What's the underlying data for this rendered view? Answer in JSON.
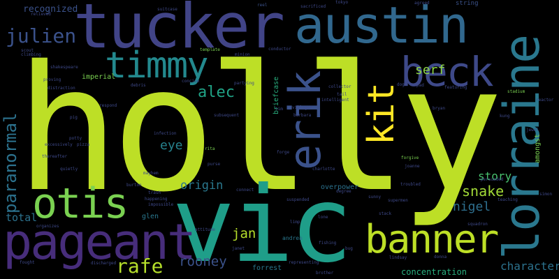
{
  "words": {
    "holly": "holly",
    "vic": "vic",
    "tucker": "tucker",
    "austin": "austin",
    "lorraine": "lorraine",
    "pageant": "pageant",
    "banner": "banner",
    "otis": "otis",
    "erik": "erik",
    "beck": "beck",
    "timmy": "timmy",
    "kit": "kit",
    "julien": "julien",
    "paranormal": "paranormal",
    "rafe": "rafe",
    "rooney": "rooney",
    "character": "character",
    "snake": "snake",
    "nigel": "nigel",
    "story": "story",
    "origin": "origin",
    "alec": "alec",
    "eye": "eye",
    "serf": "serf",
    "jan": "jan",
    "total": "total",
    "concentration": "concentration",
    "recognized": "recognized",
    "imperial": "imperial",
    "briefcase": "briefcase",
    "overpower": "overpower",
    "forrest": "forrest",
    "glen": "glen",
    "amongst": "amongst",
    "string": "string",
    "andrea": "andrea",
    "relieved": "relieved",
    "scout": "scout",
    "climbing": "climbing",
    "reel": "reel",
    "sacrificed": "sacrificed",
    "agreed": "agreed",
    "suitcase": "suitcase",
    "conductor": "conductor",
    "template": "template",
    "minion": "minion",
    "partying": "partying",
    "collector": "collector",
    "intelligent": "intelligent",
    "villager": "villager",
    "barbara": "barbara",
    "tokyo": "tokyo",
    "forge": "forge",
    "charlotte": "charlotte",
    "supermen": "supermen",
    "troubled": "troubled",
    "forgive": "forgive",
    "persuaded": "persuaded",
    "joanne": "joanne",
    "teaching": "teaching",
    "simon": "simon",
    "squadron": "squadron",
    "fishing": "fishing",
    "representing": "representing",
    "brother": "brother",
    "lindsay": "lindsay",
    "donna": "donna",
    "discharged": "discharged",
    "fought": "fought",
    "organizes": "organizes",
    "quietly": "quietly",
    "mayhem": "mayhem",
    "impossible": "impossible",
    "burton": "burton",
    "rita": "rita",
    "stadium": "stadium",
    "reactor": "reactor",
    "bryan": "bryan",
    "featuring": "featuring",
    "kung": "kung",
    "shakespeare": "shakespeare",
    "proving": "proving",
    "distraction": "distraction",
    "respond": "respond",
    "concise": "concise",
    "debris": "debris",
    "stack": "stack",
    "sunny": "sunny",
    "janet": "janet",
    "attitude": "attitude",
    "degree": "degree",
    "suspended": "suspended",
    "pizza": "pizza",
    "thereafter": "thereafter",
    "excessively": "excessively",
    "subsequent": "subsequent",
    "infection": "infection",
    "anew": "anew",
    "anything": "anything",
    "unbearing": "unbearing",
    "happening": "happening",
    "trash": "trash",
    "connect": "connect",
    "toad": "toad",
    "pig": "pig",
    "jewel": "jewel",
    "potty": "potty",
    "grueling": "grueling",
    "fiddle": "fiddle",
    "dog": "dog",
    "lone": "lone",
    "drive": "drive",
    "imp": "imp",
    "rare": "rare",
    "limp": "limp",
    "purse": "purse",
    "manage": "manage",
    "inspiring": "inspiring",
    "stolen": "stolen",
    "fill": "fill",
    "loaded": "loaded",
    "flame": "flame",
    "flaw": "flaw",
    "fatal": "fatal",
    "ugly": "ugly",
    "dent": "dent",
    "jerk": "jerk",
    "skill": "skill",
    "ban": "ban",
    "fat": "fat",
    "tim": "tim",
    "bug": "bug",
    "moon": "moon",
    "pad": "pad",
    "tail": "tail"
  },
  "colors": {
    "background": "#000000",
    "lime": "#b5de2b",
    "green": "#6ece58",
    "teal": "#1f9e89",
    "cyan": "#26828e",
    "blue": "#31688e",
    "indigo": "#3e4989",
    "purple": "#482878",
    "deep_purple": "#440154"
  }
}
